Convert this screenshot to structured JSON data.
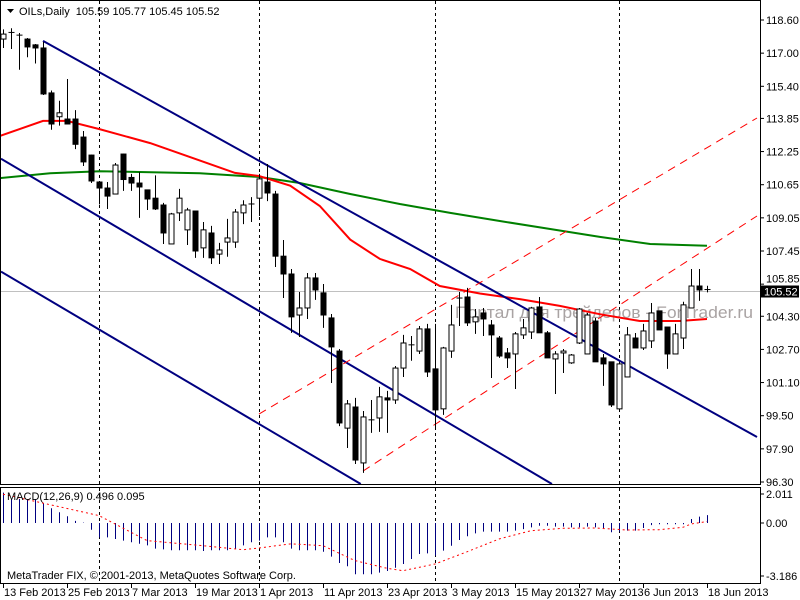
{
  "header": {
    "symbol": "OILs,Daily",
    "ohlc": "105.59 105.77 105.45 105.52"
  },
  "watermark": "Портал для трейдеров - ForTrader.ru",
  "copyright": "MetaTrader FIX, © 2001-2013, MetaQuotes Software Corp.",
  "macd_label": "MACD(12,26,9) 0.496 0.095",
  "current_price_label": "105.52",
  "colors": {
    "up": "#ffffff",
    "down": "#000000",
    "ma_fast": "#ff0000",
    "ma_slow": "#008000",
    "channel": "#000080",
    "trend": "#ff0000",
    "macd_hist": "#000080",
    "macd_signal": "#ff0000",
    "grid_sep": "#000000",
    "price_line": "#c0c0c0"
  },
  "chart_data": {
    "type": "candlestick",
    "title": "OILs,Daily",
    "price_range": [
      96.3,
      118.6
    ],
    "price_ticks": [
      "118.60",
      "117.00",
      "115.40",
      "113.85",
      "112.25",
      "110.65",
      "109.05",
      "107.45",
      "105.85",
      "104.30",
      "102.70",
      "101.10",
      "99.50",
      "97.90",
      "96.30"
    ],
    "date_ticks": [
      {
        "label": "13 Feb 2013",
        "bar": 0
      },
      {
        "label": "25 Feb 2013",
        "bar": 8
      },
      {
        "label": "7 Mar 2013",
        "bar": 16
      },
      {
        "label": "19 Mar 2013",
        "bar": 24
      },
      {
        "label": "1 Apr 2013",
        "bar": 32
      },
      {
        "label": "11 Apr 2013",
        "bar": 40
      },
      {
        "label": "23 Apr 2013",
        "bar": 48
      },
      {
        "label": "3 May 2013",
        "bar": 56
      },
      {
        "label": "15 May 2013",
        "bar": 64
      },
      {
        "label": "27 May 2013",
        "bar": 72
      },
      {
        "label": "6 Jun 2013",
        "bar": 80
      },
      {
        "label": "18 Jun 2013",
        "bar": 88
      }
    ],
    "period_separators": [
      12,
      32,
      54,
      77
    ],
    "current_price": 105.52,
    "ohlc": [
      [
        117.68,
        118.15,
        117.25,
        117.92
      ],
      [
        117.93,
        118.2,
        117.2,
        118.0
      ],
      [
        117.87,
        117.97,
        116.2,
        117.87
      ],
      [
        117.68,
        117.73,
        116.8,
        117.3
      ],
      [
        117.4,
        117.44,
        116.5,
        117.25
      ],
      [
        117.25,
        117.54,
        114.98,
        115.03
      ],
      [
        115.08,
        115.2,
        113.3,
        113.58
      ],
      [
        113.93,
        114.7,
        113.5,
        114.12
      ],
      [
        113.82,
        115.75,
        113.58,
        113.58
      ],
      [
        113.82,
        114.25,
        112.37,
        112.6
      ],
      [
        112.95,
        113.24,
        111.55,
        111.75
      ],
      [
        112.08,
        112.1,
        110.73,
        110.83
      ],
      [
        110.78,
        110.8,
        109.7,
        110.49
      ],
      [
        110.49,
        110.78,
        109.48,
        110.1
      ],
      [
        110.2,
        111.7,
        110.2,
        111.6
      ],
      [
        112.13,
        112.15,
        110.35,
        110.9
      ],
      [
        111.0,
        111.17,
        110.35,
        110.73
      ],
      [
        110.73,
        111.26,
        109.05,
        110.54
      ],
      [
        110.4,
        110.4,
        109.43,
        109.96
      ],
      [
        110.0,
        111.1,
        109.43,
        109.48
      ],
      [
        109.67,
        109.77,
        107.79,
        108.32
      ],
      [
        107.79,
        109.29,
        107.79,
        109.24
      ],
      [
        109.29,
        110.45,
        108.9,
        110.0
      ],
      [
        108.47,
        109.53,
        107.74,
        109.43
      ],
      [
        109.38,
        109.38,
        107.12,
        107.45
      ],
      [
        107.6,
        108.85,
        107.12,
        108.47
      ],
      [
        108.32,
        108.66,
        106.82,
        107.12
      ],
      [
        107.3,
        107.84,
        106.82,
        107.5
      ],
      [
        107.88,
        109.0,
        107.17,
        108.08
      ],
      [
        107.88,
        109.48,
        107.6,
        109.33
      ],
      [
        109.29,
        109.9,
        108.75,
        109.67
      ],
      [
        109.72,
        110.05,
        108.85,
        109.72
      ],
      [
        110.0,
        111.17,
        109.14,
        110.93
      ],
      [
        110.78,
        111.65,
        109.86,
        110.25
      ],
      [
        110.2,
        110.35,
        106.68,
        107.2
      ],
      [
        107.2,
        107.98,
        105.18,
        106.34
      ],
      [
        106.34,
        106.58,
        103.5,
        104.27
      ],
      [
        104.36,
        105.47,
        103.3,
        104.7
      ],
      [
        104.7,
        106.39,
        104.17,
        106.15
      ],
      [
        106.15,
        106.39,
        105.09,
        105.57
      ],
      [
        105.43,
        105.86,
        103.74,
        104.36
      ],
      [
        104.22,
        104.41,
        101.08,
        102.82
      ],
      [
        102.62,
        102.72,
        99.0,
        99.15
      ],
      [
        98.9,
        100.26,
        97.94,
        100.07
      ],
      [
        99.92,
        100.36,
        97.17,
        97.36
      ],
      [
        97.22,
        99.73,
        96.74,
        99.44
      ],
      [
        99.3,
        100.26,
        98.67,
        99.3
      ],
      [
        99.39,
        100.89,
        98.72,
        100.41
      ],
      [
        100.36,
        100.7,
        98.67,
        100.26
      ],
      [
        100.26,
        101.9,
        100.07,
        101.8
      ],
      [
        101.8,
        103.4,
        101.37,
        103.01
      ],
      [
        102.92,
        103.35,
        102.15,
        102.92
      ],
      [
        102.62,
        103.83,
        102.48,
        103.69
      ],
      [
        103.69,
        103.93,
        101.37,
        101.61
      ],
      [
        101.76,
        103.93,
        98.91,
        99.78
      ],
      [
        99.83,
        102.82,
        99.54,
        102.77
      ],
      [
        102.62,
        104.85,
        102.29,
        103.88
      ],
      [
        105.18,
        105.47,
        103.83,
        105.18
      ],
      [
        105.23,
        105.67,
        103.83,
        103.98
      ],
      [
        104.03,
        104.65,
        103.45,
        104.27
      ],
      [
        104.46,
        104.7,
        103.35,
        104.17
      ],
      [
        103.88,
        104.12,
        101.32,
        103.4
      ],
      [
        103.25,
        103.35,
        102.29,
        102.38
      ],
      [
        102.53,
        102.77,
        101.8,
        102.29
      ],
      [
        102.48,
        103.54,
        100.79,
        103.45
      ],
      [
        103.4,
        104.17,
        103.2,
        103.74
      ],
      [
        103.54,
        104.75,
        103.2,
        104.7
      ],
      [
        104.75,
        105.23,
        103.5,
        103.5
      ],
      [
        103.5,
        103.59,
        102.29,
        102.29
      ],
      [
        102.24,
        102.62,
        100.55,
        102.48
      ],
      [
        102.53,
        102.72,
        101.56,
        102.62
      ],
      [
        102.05,
        102.48,
        102.0,
        102.43
      ],
      [
        103.01,
        104.7,
        102.96,
        104.65
      ],
      [
        102.48,
        104.46,
        102.48,
        104.36
      ],
      [
        104.07,
        104.22,
        102.1,
        102.1
      ],
      [
        102.29,
        102.48,
        100.94,
        102.0
      ],
      [
        102.1,
        102.1,
        99.92,
        100.02
      ],
      [
        99.83,
        102.0,
        99.78,
        102.0
      ],
      [
        101.37,
        103.78,
        101.37,
        103.4
      ],
      [
        103.25,
        103.49,
        102.77,
        102.77
      ],
      [
        102.77,
        103.93,
        102.67,
        103.59
      ],
      [
        103.11,
        104.94,
        102.77,
        104.46
      ],
      [
        104.56,
        104.56,
        103.64,
        103.64
      ],
      [
        103.78,
        103.78,
        101.76,
        102.48
      ],
      [
        102.48,
        103.93,
        102.48,
        103.45
      ],
      [
        103.25,
        105.0,
        102.72,
        104.85
      ],
      [
        104.7,
        106.58,
        104.7,
        105.76
      ],
      [
        105.76,
        106.58,
        105.04,
        105.57
      ],
      [
        105.59,
        105.77,
        105.45,
        105.52
      ]
    ],
    "ma_fast": [
      [
        -0.4,
        113.0
      ],
      [
        5,
        113.73
      ],
      [
        8,
        113.73
      ],
      [
        12,
        113.34
      ],
      [
        18.4,
        112.66
      ],
      [
        24,
        111.9
      ],
      [
        29,
        111.22
      ],
      [
        32,
        111.07
      ],
      [
        35.9,
        110.6
      ],
      [
        39.6,
        109.62
      ],
      [
        43.4,
        108.0
      ],
      [
        47.1,
        107.07
      ],
      [
        50.9,
        106.58
      ],
      [
        54.6,
        105.76
      ],
      [
        59.6,
        105.4
      ],
      [
        64.6,
        105.13
      ],
      [
        69.6,
        104.8
      ],
      [
        74.6,
        104.4
      ],
      [
        79.6,
        104.07
      ],
      [
        84.6,
        104.07
      ],
      [
        88,
        104.17
      ]
    ],
    "ma_slow": [
      [
        -0.4,
        110.97
      ],
      [
        5.9,
        111.2
      ],
      [
        12.1,
        111.3
      ],
      [
        24.6,
        111.2
      ],
      [
        32.1,
        111.02
      ],
      [
        37.1,
        110.73
      ],
      [
        43.4,
        110.2
      ],
      [
        49.6,
        109.72
      ],
      [
        55.9,
        109.29
      ],
      [
        62.1,
        108.9
      ],
      [
        68.4,
        108.51
      ],
      [
        74.6,
        108.13
      ],
      [
        80.9,
        107.79
      ],
      [
        88,
        107.7
      ]
    ],
    "channel_lines": [
      [
        [
          5,
          117.59
        ],
        [
          94.25,
          98.47
        ]
      ],
      [
        [
          -0.4,
          111.94
        ],
        [
          94.25,
          90.36
        ]
      ],
      [
        [
          -0.4,
          106.49
        ],
        [
          94.25,
          84.91
        ]
      ]
    ],
    "trend_lines": [
      [
        [
          32,
          99.58
        ],
        [
          94.25,
          113.87
        ]
      ],
      [
        [
          45,
          96.83
        ],
        [
          94.25,
          109.14
        ]
      ]
    ],
    "macd": {
      "label": "MACD(12,26,9)",
      "range": [
        -3.186,
        2.011
      ],
      "ticks": [
        "2.011",
        "0.00",
        "-3.186"
      ],
      "histogram": [
        1.9,
        1.5,
        1.5,
        1.5,
        1.5,
        1.25,
        0.92,
        0.67,
        0.42,
        0.13,
        0.02,
        -0.42,
        -0.9,
        -0.9,
        -1.0,
        -1.1,
        -1.2,
        -1.3,
        -1.4,
        -1.6,
        -1.65,
        -1.7,
        -1.7,
        -1.7,
        -1.7,
        -1.75,
        -1.7,
        -1.7,
        -1.7,
        -1.6,
        -1.4,
        -1.2,
        -1.1,
        -0.9,
        -0.9,
        -1.2,
        -1.6,
        -1.7,
        -1.7,
        -1.7,
        -1.8,
        -2.1,
        -2.5,
        -2.7,
        -3.2,
        -3.2,
        -3.2,
        -3.1,
        -3.0,
        -2.8,
        -2.56,
        -2.25,
        -1.94,
        -1.9,
        -2.04,
        -1.73,
        -1.42,
        -1.06,
        -0.83,
        -0.65,
        -0.54,
        -0.54,
        -0.54,
        -0.54,
        -0.48,
        -0.38,
        -0.27,
        -0.17,
        -0.17,
        -0.23,
        -0.23,
        -0.27,
        -0.27,
        -0.23,
        -0.27,
        -0.31,
        -0.58,
        -0.54,
        -0.48,
        -0.48,
        -0.31,
        -0.13,
        -0.08,
        -0.08,
        -0.08,
        -0.08,
        0.25,
        0.4,
        0.496
      ],
      "signal": [
        [
          0,
          1.8
        ],
        [
          12,
          0.46
        ],
        [
          18,
          -1.1
        ],
        [
          25,
          -1.42
        ],
        [
          30,
          -1.67
        ],
        [
          32,
          -1.56
        ],
        [
          36,
          -1.3
        ],
        [
          40,
          -1.42
        ],
        [
          44,
          -2.35
        ],
        [
          48,
          -2.83
        ],
        [
          50,
          -2.98
        ],
        [
          54,
          -2.56
        ],
        [
          58,
          -1.8
        ],
        [
          62,
          -1.0
        ],
        [
          66,
          -0.48
        ],
        [
          70,
          -0.33
        ],
        [
          74,
          -0.31
        ],
        [
          78,
          -0.44
        ],
        [
          82,
          -0.42
        ],
        [
          85,
          -0.27
        ],
        [
          86,
          -0.06
        ],
        [
          88,
          0.095
        ]
      ]
    }
  }
}
